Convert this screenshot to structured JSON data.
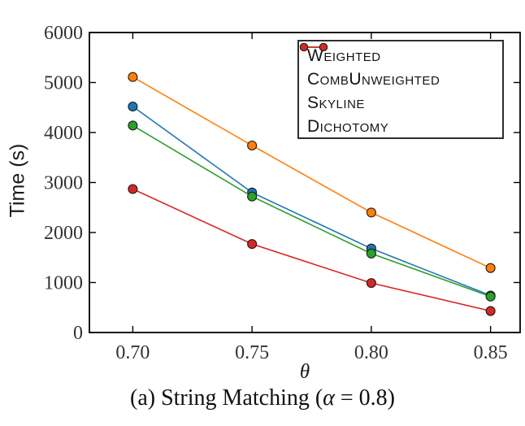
{
  "figure": {
    "ylabel": "Time (s)",
    "xlabel": "θ",
    "caption": {
      "prefix": "(a) String Matching (",
      "alpha": "α",
      "suffix": " = 0.8)"
    }
  },
  "chart_data": {
    "type": "line",
    "title": "",
    "xlabel": "θ",
    "ylabel": "Time (s)",
    "x": [
      0.7,
      0.75,
      0.8,
      0.85
    ],
    "x_tick_labels": [
      "0.70",
      "0.75",
      "0.80",
      "0.85"
    ],
    "y_ticks": [
      0,
      1000,
      2000,
      3000,
      4000,
      5000,
      6000
    ],
    "y_tick_labels": [
      "0",
      "1000",
      "2000",
      "3000",
      "4000",
      "5000",
      "6000"
    ],
    "xlim": [
      0.6818,
      0.8624
    ],
    "ylim": [
      0,
      6000
    ],
    "grid": false,
    "legend_position": "upper right",
    "marker": "circle",
    "marker_edge_color": "#1c1c1c",
    "series": [
      {
        "name": "Weighted",
        "color": "#1f77b4",
        "values": [
          4520,
          2800,
          1680,
          740
        ]
      },
      {
        "name": "CombUnweighted",
        "color": "#ff7f0e",
        "values": [
          5110,
          3740,
          2400,
          1290
        ]
      },
      {
        "name": "Skyline",
        "color": "#2ca02c",
        "values": [
          4140,
          2720,
          1580,
          720
        ]
      },
      {
        "name": "Dichotomy",
        "color": "#d62728",
        "values": [
          2870,
          1770,
          990,
          430
        ]
      }
    ]
  }
}
